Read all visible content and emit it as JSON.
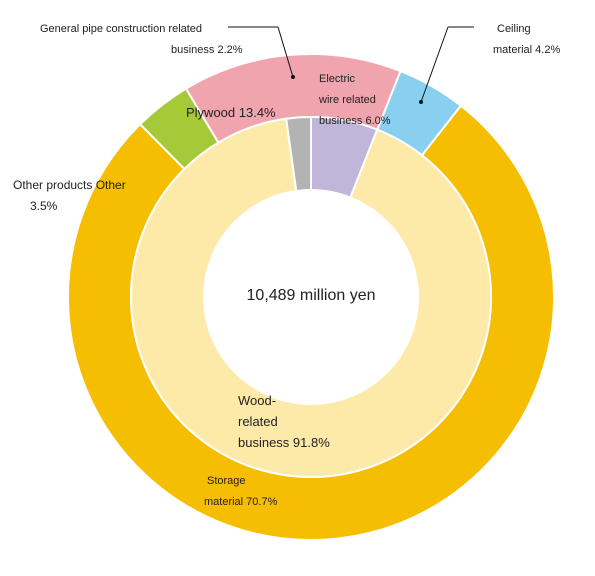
{
  "chart_data": {
    "type": "pie",
    "center_label": "10,489 million yen",
    "inner_ring": [
      {
        "label": "Wood-related business",
        "value": 91.8,
        "color": "#fde9a8"
      },
      {
        "label": "Electric wire related business",
        "value": 6.0,
        "color": "#bfb6da"
      },
      {
        "label": "General pipe construction related business",
        "value": 2.2,
        "color": "#b3b3b3"
      }
    ],
    "outer_ring": [
      {
        "label": "Ceiling material",
        "value": 4.2,
        "color": "#89cff0"
      },
      {
        "label": "Storage material",
        "value": 70.7,
        "color": "#f6be00"
      },
      {
        "label": "Other products Other",
        "value": 3.5,
        "color": "#a6c93a"
      },
      {
        "label": "Plywood",
        "value": 13.4,
        "color": "#f0a4ae"
      }
    ]
  },
  "labels": {
    "pipe_line1": "General pipe construction related",
    "pipe_line2": "business 2.2%",
    "ceiling_line1": "Ceiling",
    "ceiling_line2": "material 4.2%",
    "electric_line1": "Electric",
    "electric_line2": "wire related",
    "electric_line3": "business 6.0%",
    "plywood": "Plywood 13.4%",
    "other_line1": "Other products Other",
    "other_line2": "3.5%",
    "wood_line1": "Wood-",
    "wood_line2": "related",
    "wood_line3": "business 91.8%",
    "storage_line1": "Storage",
    "storage_line2": "material 70.7%"
  }
}
